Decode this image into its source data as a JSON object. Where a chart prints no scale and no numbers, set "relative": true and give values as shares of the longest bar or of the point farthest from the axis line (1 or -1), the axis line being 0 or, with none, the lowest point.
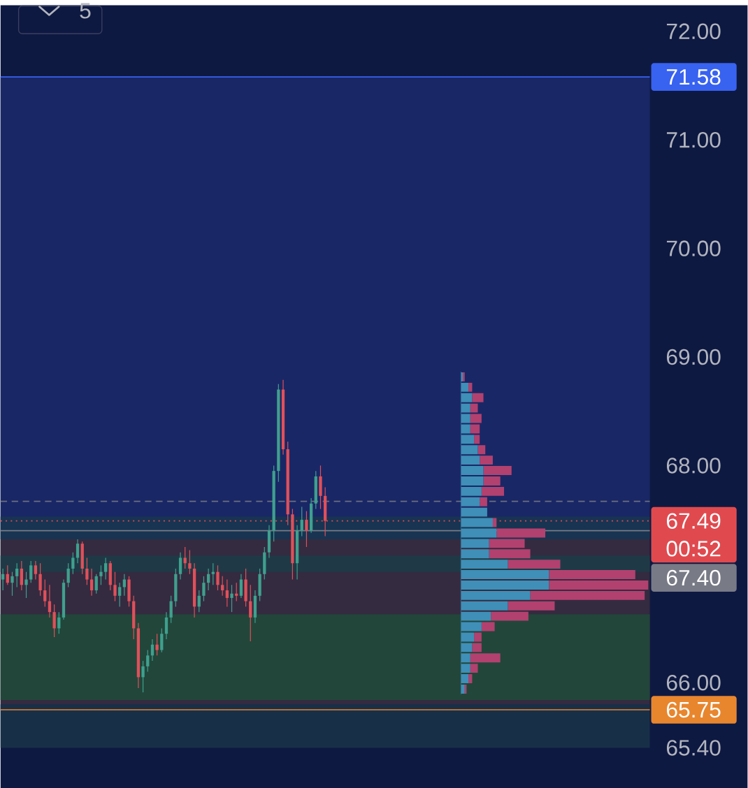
{
  "chart_data": [
    {
      "type": "candlestick",
      "categories": [
        null,
        null,
        null,
        null,
        null,
        null,
        null,
        null,
        null,
        null,
        null,
        null,
        null,
        null,
        null,
        null,
        null,
        null,
        null,
        null,
        null,
        null,
        null,
        null,
        null,
        null,
        null,
        null,
        null,
        null,
        null,
        null,
        null,
        null,
        null,
        null,
        null,
        null,
        null,
        null,
        null,
        null,
        null,
        null,
        null,
        null,
        null,
        null,
        null,
        null,
        null,
        null,
        null,
        null,
        null,
        null,
        null,
        null,
        null,
        null,
        null,
        null,
        null,
        null,
        null,
        null,
        null,
        null,
        null,
        null,
        null,
        null,
        null,
        null,
        null,
        null,
        null,
        null,
        null,
        null,
        null,
        null,
        null,
        null,
        null,
        null,
        null,
        null,
        null,
        null,
        null,
        null,
        null,
        null,
        null,
        null,
        null,
        null,
        null,
        null,
        null,
        null,
        null,
        null,
        null,
        null,
        null,
        null,
        null,
        null,
        null,
        null,
        null,
        null,
        null,
        null,
        null,
        null,
        null,
        null,
        null,
        null,
        null,
        null,
        null,
        null,
        null,
        null,
        null,
        null,
        null,
        null,
        null,
        null,
        null,
        null,
        null,
        null,
        null
      ],
      "ohlc": [
        [
          66.95,
          67.05,
          66.85,
          67.0
        ],
        [
          67.0,
          67.08,
          66.9,
          66.92
        ],
        [
          66.92,
          67.02,
          66.8,
          66.98
        ],
        [
          66.98,
          67.1,
          66.88,
          67.05
        ],
        [
          67.05,
          67.12,
          66.85,
          66.9
        ],
        [
          66.9,
          67.02,
          66.78,
          66.95
        ],
        [
          66.95,
          67.12,
          66.92,
          67.08
        ],
        [
          67.08,
          67.12,
          66.95,
          67.0
        ],
        [
          67.0,
          67.1,
          66.8,
          66.85
        ],
        [
          66.85,
          66.95,
          66.7,
          66.75
        ],
        [
          66.75,
          66.9,
          66.6,
          66.65
        ],
        [
          66.65,
          66.72,
          66.42,
          66.5
        ],
        [
          66.5,
          66.65,
          66.45,
          66.6
        ],
        [
          66.6,
          66.95,
          66.58,
          66.92
        ],
        [
          66.92,
          67.1,
          66.88,
          67.05
        ],
        [
          67.05,
          67.2,
          67.0,
          67.15
        ],
        [
          67.15,
          67.32,
          67.1,
          67.28
        ],
        [
          67.28,
          67.3,
          67.0,
          67.05
        ],
        [
          67.05,
          67.15,
          66.9,
          66.95
        ],
        [
          66.95,
          67.05,
          66.8,
          66.85
        ],
        [
          66.85,
          67.0,
          66.82,
          66.98
        ],
        [
          66.98,
          67.08,
          66.9,
          67.02
        ],
        [
          67.02,
          67.15,
          66.95,
          67.1
        ],
        [
          67.1,
          67.12,
          66.85,
          66.9
        ],
        [
          66.9,
          67.02,
          66.75,
          66.8
        ],
        [
          66.8,
          66.92,
          66.7,
          66.88
        ],
        [
          66.88,
          67.0,
          66.8,
          66.95
        ],
        [
          66.95,
          66.98,
          66.7,
          66.75
        ],
        [
          66.75,
          66.8,
          66.4,
          66.5
        ],
        [
          66.5,
          66.55,
          65.95,
          66.05
        ],
        [
          66.05,
          66.2,
          65.91,
          66.15
        ],
        [
          66.15,
          66.3,
          66.1,
          66.25
        ],
        [
          66.25,
          66.4,
          66.2,
          66.35
        ],
        [
          66.35,
          66.45,
          66.25,
          66.3
        ],
        [
          66.3,
          66.5,
          66.28,
          66.45
        ],
        [
          66.45,
          66.65,
          66.4,
          66.6
        ],
        [
          66.6,
          66.8,
          66.55,
          66.75
        ],
        [
          66.75,
          67.05,
          66.7,
          67.0
        ],
        [
          67.0,
          67.2,
          66.95,
          67.15
        ],
        [
          67.15,
          67.25,
          67.05,
          67.1
        ],
        [
          67.1,
          67.22,
          67.0,
          67.05
        ],
        [
          67.05,
          67.1,
          66.6,
          66.7
        ],
        [
          66.7,
          66.85,
          66.65,
          66.8
        ],
        [
          66.8,
          66.98,
          66.75,
          66.92
        ],
        [
          66.92,
          67.05,
          66.85,
          67.0
        ],
        [
          67.0,
          67.1,
          66.9,
          67.02
        ],
        [
          67.02,
          67.08,
          66.85,
          66.9
        ],
        [
          66.9,
          66.98,
          66.8,
          66.85
        ],
        [
          66.85,
          66.95,
          66.7,
          66.78
        ],
        [
          66.78,
          66.9,
          66.65,
          66.82
        ],
        [
          66.82,
          66.92,
          66.75,
          66.8
        ],
        [
          66.8,
          67.0,
          66.78,
          66.95
        ],
        [
          66.95,
          67.05,
          66.7,
          66.75
        ],
        [
          66.75,
          66.9,
          66.38,
          66.6
        ],
        [
          66.6,
          66.85,
          66.55,
          66.8
        ],
        [
          66.8,
          67.05,
          66.75,
          67.0
        ],
        [
          67.0,
          67.25,
          66.95,
          67.2
        ],
        [
          67.2,
          67.45,
          67.15,
          67.4
        ],
        [
          67.4,
          68.0,
          67.3,
          67.95
        ],
        [
          67.95,
          68.75,
          67.85,
          68.7
        ],
        [
          68.7,
          68.79,
          68.1,
          68.15
        ],
        [
          68.15,
          68.22,
          67.45,
          67.55
        ],
        [
          67.55,
          67.6,
          66.95,
          67.1
        ],
        [
          67.1,
          67.45,
          66.95,
          67.4
        ],
        [
          67.4,
          67.62,
          67.35,
          67.5
        ],
        [
          67.5,
          67.58,
          67.25,
          67.4
        ],
        [
          67.4,
          67.7,
          67.38,
          67.65
        ],
        [
          67.65,
          67.95,
          67.6,
          67.9
        ],
        [
          67.9,
          68.0,
          67.6,
          67.72
        ],
        [
          67.72,
          67.8,
          67.35,
          67.49
        ],
        null,
        null,
        null,
        null,
        null,
        null,
        null,
        null,
        null,
        null,
        null,
        null,
        null,
        null,
        null,
        null,
        null,
        null,
        null,
        null,
        null,
        null,
        null,
        null,
        null,
        null,
        null,
        null,
        null,
        null,
        null,
        null,
        null,
        null,
        null,
        null,
        null,
        null,
        null,
        null,
        null,
        null,
        null,
        null,
        null,
        null,
        null,
        null,
        null,
        null,
        null,
        null,
        null,
        null,
        null,
        null,
        null,
        null,
        null,
        null,
        null,
        null,
        null,
        null,
        null,
        null,
        null,
        null,
        null
      ],
      "colors": [
        "#3fa08e",
        "#e0505a",
        "#3fa08e",
        "#3fa08e",
        "#e0505a",
        "#3fa08e",
        "#3fa08e",
        "#e0505a",
        "#e0505a",
        "#e0505a",
        "#e0505a",
        "#e0505a",
        "#3fa08e",
        "#3fa08e",
        "#3fa08e",
        "#3fa08e",
        "#3fa08e",
        "#e0505a",
        "#e0505a",
        "#e0505a",
        "#3fa08e",
        "#3fa08e",
        "#3fa08e",
        "#e0505a",
        "#e0505a",
        "#3fa08e",
        "#3fa08e",
        "#e0505a",
        "#e0505a",
        "#e0505a",
        "#3fa08e",
        "#3fa08e",
        "#3fa08e",
        "#e0505a",
        "#3fa08e",
        "#3fa08e",
        "#3fa08e",
        "#3fa08e",
        "#3fa08e",
        "#e0505a",
        "#e0505a",
        "#e0505a",
        "#3fa08e",
        "#3fa08e",
        "#3fa08e",
        "#3fa08e",
        "#e0505a",
        "#e0505a",
        "#e0505a",
        "#3fa08e",
        "#e0505a",
        "#3fa08e",
        "#e0505a",
        "#e0505a",
        "#3fa08e",
        "#3fa08e",
        "#3fa08e",
        "#3fa08e",
        "#3fa08e",
        "#3fa08e",
        "#e0505a",
        "#e0505a",
        "#e0505a",
        "#3fa08e",
        "#3fa08e",
        "#e0505a",
        "#3fa08e",
        "#3fa08e",
        "#e0505a",
        "#e0505a",
        null,
        null,
        null,
        null,
        null,
        null,
        null,
        null,
        null,
        null,
        null,
        null,
        null,
        null,
        null,
        null,
        null,
        null,
        null,
        null,
        null,
        null,
        null,
        null,
        null,
        null,
        null,
        null,
        null,
        null,
        null,
        null,
        null,
        null,
        null,
        null,
        null,
        null,
        null,
        null,
        null,
        null,
        null,
        null,
        null,
        null,
        null,
        null,
        null,
        null,
        null,
        null,
        null,
        null,
        null,
        null,
        null,
        null,
        null,
        null,
        null,
        null,
        null,
        null,
        null,
        null,
        null,
        null,
        null
      ],
      "ylim": [
        65.4,
        72.24
      ],
      "yticks": [
        {
          "value": 65.4,
          "label": "65.40"
        },
        {
          "value": 66,
          "label": "66.00"
        },
        {
          "value": 68,
          "label": "68.00"
        },
        {
          "value": 69,
          "label": "69.00"
        },
        {
          "value": 70,
          "label": "70.00"
        },
        {
          "value": 71,
          "label": "71.00"
        },
        {
          "value": 72,
          "label": "72.00"
        }
      ],
      "tick_labels": "y",
      "bands": [
        {
          "axis": "y",
          "from": 67.45,
          "to": 71.58,
          "color": "#1a2766"
        },
        {
          "axis": "y",
          "from": 65.75,
          "to": 67.45,
          "color": "#342b40"
        },
        {
          "axis": "y",
          "from": 65.84,
          "to": 66.63,
          "color": "#22463a"
        },
        {
          "axis": "y",
          "from": 65.4,
          "to": 65.8,
          "color": "#182f48"
        },
        {
          "axis": "y",
          "from": 67.02,
          "to": 67.17,
          "color": "#1f3a46"
        },
        {
          "axis": "y",
          "from": 67.32,
          "to": 67.53,
          "color": "#183452"
        }
      ],
      "ref_lines": [
        {
          "axis": "y",
          "value": 67.49,
          "label": "67.49",
          "color": "#e04a4f",
          "line_style": "dotted"
        },
        {
          "axis": "y",
          "value": 67.4,
          "label": "67.40",
          "color": "#787b86"
        },
        {
          "axis": "y",
          "value": 71.58,
          "label": "71.58",
          "color": "#3862f0"
        },
        {
          "axis": "y",
          "value": 65.75,
          "label": "65.75",
          "color": "#e8862e"
        },
        {
          "axis": "y",
          "value": 67.67,
          "color": "#6b7080",
          "line_style": "dashed"
        }
      ],
      "annotations": [
        "00:52",
        "5"
      ]
    },
    {
      "type": "bar",
      "orientation": "horizontal",
      "stacked": true,
      "relative": true,
      "categories": [
        null,
        null,
        null,
        null,
        null,
        null,
        null,
        null,
        null,
        null,
        null,
        null,
        null,
        null,
        null,
        null,
        null,
        null,
        null,
        null,
        null,
        null,
        null,
        null,
        null,
        null,
        null,
        null,
        null,
        null,
        null
      ],
      "series": [
        {
          "color": "#3f8fb8",
          "values": [
            0.01,
            0.04,
            0.06,
            0.05,
            0.05,
            0.05,
            0.07,
            0.09,
            0.1,
            0.12,
            0.12,
            0.11,
            0.1,
            0.14,
            0.17,
            0.19,
            0.15,
            0.15,
            0.25,
            0.47,
            0.47,
            0.37,
            0.25,
            0.16,
            0.11,
            0.07,
            0.06,
            0.05,
            0.05,
            0.04,
            0.02
          ]
        },
        {
          "color": "#b2416f",
          "values": [
            0.01,
            0.02,
            0.06,
            0.04,
            0.06,
            0.05,
            0.03,
            0.04,
            0.07,
            0.15,
            0.09,
            0.12,
            0.04,
            0,
            0.02,
            0.26,
            0.19,
            0.22,
            0.28,
            0.46,
            0.53,
            0.61,
            0.25,
            0.2,
            0.07,
            0.04,
            0.05,
            0.16,
            0.04,
            0.02,
            0.01
          ]
        }
      ]
    }
  ]
}
